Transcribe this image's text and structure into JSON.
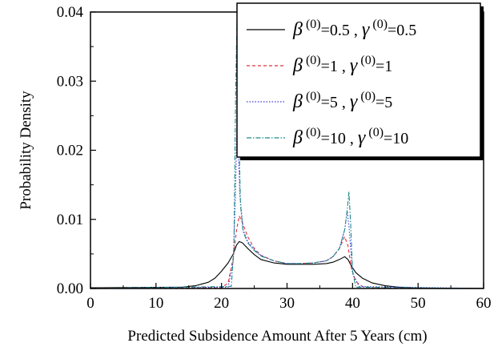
{
  "chart_data": {
    "type": "line",
    "xlabel": "Predicted Subsidence Amount After 5 Years (cm)",
    "ylabel": "Probability Density",
    "xlim": [
      0,
      60
    ],
    "ylim": [
      0,
      0.04
    ],
    "xticks": [
      0,
      10,
      20,
      30,
      40,
      50,
      60
    ],
    "xtick_labels": [
      "0",
      "10",
      "20",
      "30",
      "40",
      "50",
      "60"
    ],
    "yticks": [
      0.0,
      0.01,
      0.02,
      0.03,
      0.04
    ],
    "ytick_labels": [
      "0.00",
      "0.01",
      "0.02",
      "0.03",
      "0.04"
    ],
    "grid": false,
    "legend_position": "top-right",
    "series": [
      {
        "label_parts": {
          "beta": "β",
          "beta_val": "=0.5",
          "sep": " , ",
          "gamma": "γ",
          "gamma_val": "=0.5",
          "sup": "(0)"
        },
        "color": "#000000",
        "dash": "",
        "x": [
          0,
          14,
          16,
          18,
          19,
          20,
          21,
          21.8,
          22.3,
          22.7,
          23.2,
          24,
          25,
          26,
          28,
          30,
          32,
          34,
          36,
          37,
          38,
          38.8,
          39.3,
          39.8,
          40.5,
          41.5,
          43,
          45,
          47,
          49,
          51,
          60
        ],
        "y": [
          0.0001,
          0.0002,
          0.0004,
          0.0009,
          0.0015,
          0.0025,
          0.0037,
          0.005,
          0.0063,
          0.0068,
          0.0066,
          0.0058,
          0.0049,
          0.0042,
          0.0037,
          0.0035,
          0.0035,
          0.0035,
          0.0036,
          0.0038,
          0.0042,
          0.0046,
          0.0042,
          0.0033,
          0.0023,
          0.0015,
          0.0008,
          0.0004,
          0.0002,
          0.0001,
          5e-05,
          2e-05
        ]
      },
      {
        "label_parts": {
          "beta": "β",
          "beta_val": "=1",
          "sep": " , ",
          "gamma": "γ",
          "gamma_val": "=1",
          "sup": "(0)"
        },
        "color": "#e0303a",
        "dash": "4,3",
        "x": [
          0,
          20,
          21,
          21.8,
          22.3,
          22.7,
          23.2,
          24,
          25,
          26,
          28,
          30,
          32,
          34,
          36,
          37,
          38,
          38.8,
          39.3,
          39.8,
          40.5,
          41.5,
          43,
          60
        ],
        "y": [
          0,
          0.0001,
          0.0008,
          0.0045,
          0.0085,
          0.0105,
          0.0095,
          0.0075,
          0.0058,
          0.0048,
          0.004,
          0.0036,
          0.0036,
          0.0037,
          0.004,
          0.0046,
          0.0058,
          0.0075,
          0.0062,
          0.003,
          0.001,
          0.0003,
          0.0001,
          0
        ]
      },
      {
        "label_parts": {
          "beta": "β",
          "beta_val": "=5",
          "sep": " , ",
          "gamma": "γ",
          "gamma_val": "=5",
          "sup": "(0)"
        },
        "color": "#3a3ad8",
        "dash": "1.5,2",
        "x": [
          0,
          21,
          21.8,
          22.1,
          22.4,
          22.8,
          23.3,
          24,
          25,
          26,
          28,
          30,
          32,
          34,
          36,
          37,
          38,
          38.8,
          39.2,
          39.5,
          40,
          41,
          60
        ],
        "y": [
          0,
          0.0002,
          0.004,
          0.013,
          0.025,
          0.0135,
          0.0085,
          0.0068,
          0.0056,
          0.0048,
          0.004,
          0.0036,
          0.0036,
          0.0037,
          0.004,
          0.0046,
          0.0058,
          0.0085,
          0.0112,
          0.0085,
          0.0022,
          0.0003,
          0
        ]
      },
      {
        "label_parts": {
          "beta": "β",
          "beta_val": "=10",
          "sep": " , ",
          "gamma": "γ",
          "gamma_val": "=10",
          "sup": "(0)"
        },
        "color": "#1f8a8a",
        "dash": "6,2,1.5,2",
        "x": [
          0,
          21.5,
          21.9,
          22.15,
          22.35,
          22.55,
          22.9,
          23.3,
          24,
          25,
          26,
          28,
          30,
          32,
          34,
          36,
          37,
          38,
          38.8,
          39.2,
          39.45,
          39.7,
          40,
          40.5,
          60
        ],
        "y": [
          0,
          0.0003,
          0.006,
          0.028,
          0.0385,
          0.027,
          0.012,
          0.0082,
          0.0066,
          0.0055,
          0.0047,
          0.004,
          0.0036,
          0.0036,
          0.0037,
          0.004,
          0.0046,
          0.0058,
          0.0085,
          0.0115,
          0.014,
          0.0095,
          0.0025,
          0.0002,
          0
        ]
      }
    ]
  }
}
